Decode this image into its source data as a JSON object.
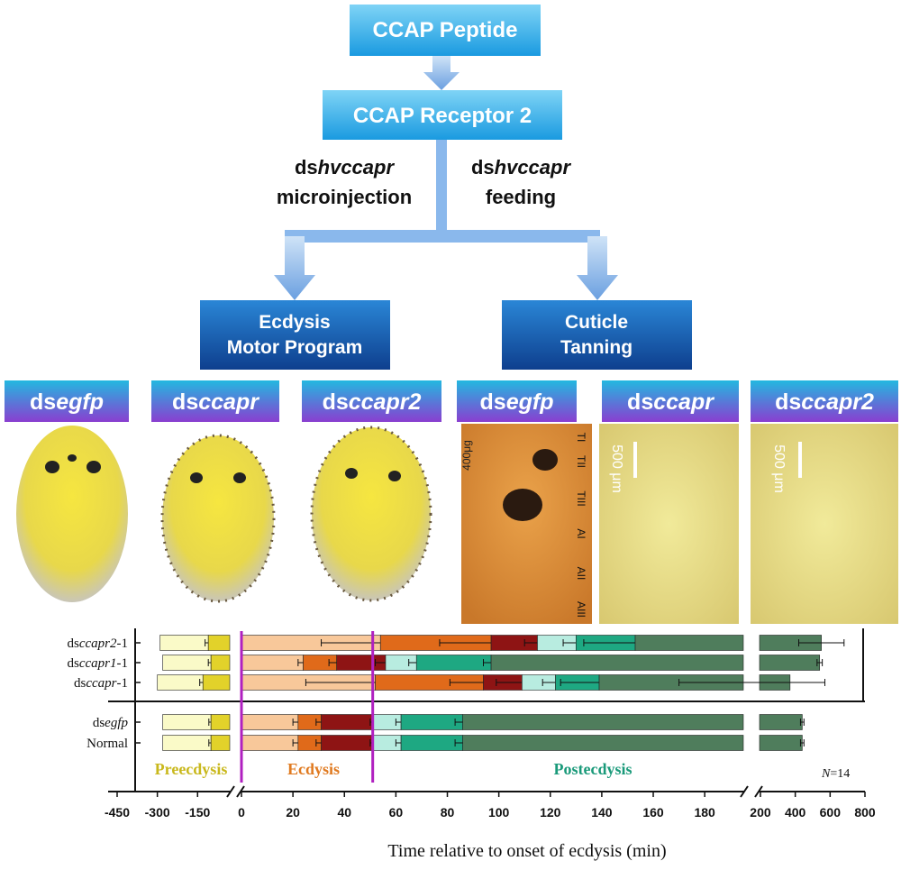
{
  "flow": {
    "nodes": [
      {
        "label": "CCAP Peptide"
      },
      {
        "label": "CCAP Receptor 2"
      }
    ],
    "treatments": [
      {
        "prefix": "ds",
        "italic": "hvccapr",
        "method": "microinjection"
      },
      {
        "prefix": "ds",
        "italic": "hvccapr",
        "method": "feeding"
      }
    ],
    "outcomes": [
      [
        "Ecdysis",
        "Motor Program"
      ],
      [
        "Cuticle",
        "Tanning"
      ]
    ]
  },
  "panels": [
    {
      "prefix": "ds",
      "italic": "egfp"
    },
    {
      "prefix": "ds",
      "italic": "ccapr"
    },
    {
      "prefix": "ds",
      "italic": "ccapr2"
    },
    {
      "prefix": "ds",
      "italic": "egfp"
    },
    {
      "prefix": "ds",
      "italic": "ccapr"
    },
    {
      "prefix": "ds",
      "italic": "ccapr2"
    }
  ],
  "photo_labels": {
    "scale_bars": [
      "400μg",
      "500 μm",
      "500 μm"
    ],
    "segments": [
      "TI",
      "TII",
      "TIII",
      "AI",
      "AII",
      "AIII"
    ]
  },
  "chart_data": {
    "type": "timeline",
    "xlabel": "Time relative to onset of ecdysis (min)",
    "xlim_pieces": [
      [
        -450,
        -30
      ],
      [
        0,
        195
      ],
      [
        195,
        800
      ]
    ],
    "xticks": [
      -450,
      -300,
      -150,
      0,
      20,
      40,
      60,
      80,
      100,
      120,
      140,
      160,
      180,
      200,
      400,
      600,
      800
    ],
    "phases": [
      {
        "name": "Preecdysis",
        "color": "#c9b81c"
      },
      {
        "name": "Ecdysis",
        "color": "#e07a20"
      },
      {
        "name": "Postecdysis",
        "color": "#1a9a7a"
      }
    ],
    "onset_markers": [
      0,
      51
    ],
    "marker_color": "#b020c0",
    "n_label": {
      "symbol": "N",
      "text": "=14"
    },
    "rows": [
      {
        "label": [
          {
            "text": "ds"
          },
          {
            "text": "ccapr2",
            "italic": true
          },
          {
            "text": "-1"
          }
        ],
        "segments": [
          {
            "phase": 0,
            "start": -290,
            "end": -110,
            "color": "#fafac8",
            "err": 12
          },
          {
            "phase": 0,
            "start": -110,
            "end": -30,
            "color": "#e2d22a"
          },
          {
            "phase": 1,
            "start": 0,
            "end": 54,
            "color": "#f8c89a",
            "err": 23
          },
          {
            "phase": 1,
            "start": 54,
            "end": 97,
            "color": "#e06a1a",
            "err": 20
          },
          {
            "phase": 1,
            "start": 97,
            "end": 115,
            "color": "#8e1414",
            "err": 5
          },
          {
            "phase": 2,
            "start": 115,
            "end": 130,
            "color": "#b8ece0",
            "err": 5
          },
          {
            "phase": 2,
            "start": 130,
            "end": 153,
            "color": "#1ea882",
            "err": 20
          },
          {
            "phase": 2,
            "start": 153,
            "end": 550,
            "color": "#4f7d5c",
            "err": 130
          }
        ]
      },
      {
        "label": [
          {
            "text": "ds"
          },
          {
            "text": "ccapr1",
            "italic": true
          },
          {
            "text": "-1"
          }
        ],
        "segments": [
          {
            "phase": 0,
            "start": -280,
            "end": -100,
            "color": "#fafac8",
            "err": 10
          },
          {
            "phase": 0,
            "start": -100,
            "end": -30,
            "color": "#e2d22a"
          },
          {
            "phase": 1,
            "start": 0,
            "end": 24,
            "color": "#f8c89a",
            "err": 2
          },
          {
            "phase": 1,
            "start": 24,
            "end": 37,
            "color": "#e06a1a",
            "err": 3
          },
          {
            "phase": 1,
            "start": 37,
            "end": 56,
            "color": "#8e1414",
            "err": 4
          },
          {
            "phase": 2,
            "start": 56,
            "end": 68,
            "color": "#b8ece0",
            "err": 3
          },
          {
            "phase": 2,
            "start": 68,
            "end": 97,
            "color": "#1ea882",
            "err": 3
          },
          {
            "phase": 2,
            "start": 97,
            "end": 540,
            "color": "#4f7d5c",
            "err": 15
          }
        ]
      },
      {
        "label": [
          {
            "text": "ds"
          },
          {
            "text": "ccapr",
            "italic": true
          },
          {
            "text": "-1"
          }
        ],
        "segments": [
          {
            "phase": 0,
            "start": -300,
            "end": -130,
            "color": "#fafac8",
            "err": 12
          },
          {
            "phase": 0,
            "start": -130,
            "end": -30,
            "color": "#e2d22a"
          },
          {
            "phase": 1,
            "start": 0,
            "end": 52,
            "color": "#f8c89a",
            "err": 27
          },
          {
            "phase": 1,
            "start": 52,
            "end": 94,
            "color": "#e06a1a",
            "err": 13
          },
          {
            "phase": 1,
            "start": 94,
            "end": 109,
            "color": "#8e1414",
            "err": 10
          },
          {
            "phase": 2,
            "start": 109,
            "end": 122,
            "color": "#b8ece0",
            "err": 5
          },
          {
            "phase": 2,
            "start": 122,
            "end": 139,
            "color": "#1ea882",
            "err": 15
          },
          {
            "phase": 2,
            "start": 139,
            "end": 370,
            "color": "#4f7d5c",
            "err": 200
          }
        ]
      },
      {
        "label": [
          {
            "text": "ds"
          },
          {
            "text": "egfp",
            "italic": true
          }
        ],
        "segments": [
          {
            "phase": 0,
            "start": -280,
            "end": -100,
            "color": "#fafac8",
            "err": 8
          },
          {
            "phase": 0,
            "start": -100,
            "end": -30,
            "color": "#e2d22a"
          },
          {
            "phase": 1,
            "start": 0,
            "end": 22,
            "color": "#f8c89a",
            "err": 2
          },
          {
            "phase": 1,
            "start": 22,
            "end": 31,
            "color": "#e06a1a",
            "err": 2
          },
          {
            "phase": 1,
            "start": 31,
            "end": 51,
            "color": "#8e1414",
            "err": 1
          },
          {
            "phase": 2,
            "start": 51,
            "end": 62,
            "color": "#b8ece0",
            "err": 2
          },
          {
            "phase": 2,
            "start": 62,
            "end": 86,
            "color": "#1ea882",
            "err": 3
          },
          {
            "phase": 2,
            "start": 86,
            "end": 440,
            "color": "#4f7d5c",
            "err": 10
          }
        ]
      },
      {
        "label": [
          {
            "text": "Normal"
          }
        ],
        "segments": [
          {
            "phase": 0,
            "start": -280,
            "end": -100,
            "color": "#fafac8",
            "err": 8
          },
          {
            "phase": 0,
            "start": -100,
            "end": -30,
            "color": "#e2d22a"
          },
          {
            "phase": 1,
            "start": 0,
            "end": 22,
            "color": "#f8c89a",
            "err": 2
          },
          {
            "phase": 1,
            "start": 22,
            "end": 31,
            "color": "#e06a1a",
            "err": 2
          },
          {
            "phase": 1,
            "start": 31,
            "end": 51,
            "color": "#8e1414",
            "err": 1
          },
          {
            "phase": 2,
            "start": 51,
            "end": 62,
            "color": "#b8ece0",
            "err": 2
          },
          {
            "phase": 2,
            "start": 62,
            "end": 86,
            "color": "#1ea882",
            "err": 3
          },
          {
            "phase": 2,
            "start": 86,
            "end": 440,
            "color": "#4f7d5c",
            "err": 10
          }
        ]
      }
    ]
  }
}
